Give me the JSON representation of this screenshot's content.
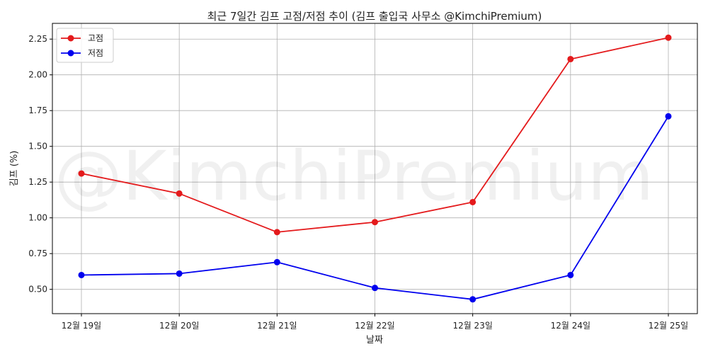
{
  "chart_data": {
    "type": "line",
    "title": "최근 7일간 김프 고점/저점 추이 (김프 출입국 사무소 @KimchiPremium)",
    "xlabel": "날짜",
    "ylabel": "김프 (%)",
    "categories": [
      "12월 19일",
      "12월 20일",
      "12월 21일",
      "12월 22일",
      "12월 23일",
      "12월 24일",
      "12월 25일"
    ],
    "series": [
      {
        "name": "고점",
        "color": "#e41a1c",
        "values": [
          1.31,
          1.17,
          0.9,
          0.97,
          1.11,
          2.11,
          2.26
        ]
      },
      {
        "name": "저점",
        "color": "#0000ee",
        "values": [
          0.6,
          0.61,
          0.69,
          0.51,
          0.43,
          0.6,
          1.71
        ]
      }
    ],
    "ylim": [
      0.33,
      2.36
    ],
    "yticks": [
      0.5,
      0.75,
      1.0,
      1.25,
      1.5,
      1.75,
      2.0,
      2.25
    ],
    "ytick_labels": [
      "0.50",
      "0.75",
      "1.00",
      "1.25",
      "1.50",
      "1.75",
      "2.00",
      "2.25"
    ],
    "grid": true,
    "legend_position": "top-left",
    "watermark": "@KimchiPremium"
  }
}
